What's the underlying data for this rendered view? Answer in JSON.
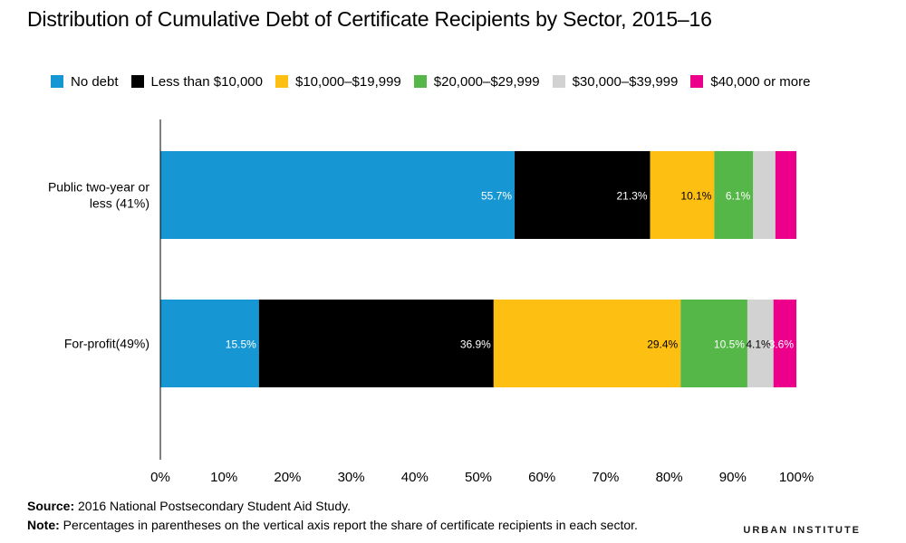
{
  "title": "Distribution of Cumulative Debt of Certificate Recipients by Sector, 2015–16",
  "colors": {
    "no_debt": "#1696d2",
    "lt_10k": "#000000",
    "10k_20k": "#fdbf11",
    "20k_30k": "#55b748",
    "30k_40k": "#d2d2d2",
    "40k_plus": "#ec008b"
  },
  "chart_data": {
    "type": "bar",
    "orientation": "horizontal",
    "stacked": true,
    "categories": [
      "Public two-year or less (41%)",
      "For-profit(49%)"
    ],
    "series": [
      {
        "name": "No debt",
        "color": "#1696d2",
        "values": [
          55.7,
          15.5
        ],
        "labels": [
          "55.7%",
          "15.5%"
        ],
        "label_color": "#ffffff"
      },
      {
        "name": "Less than $10,000",
        "color": "#000000",
        "values": [
          21.3,
          36.9
        ],
        "labels": [
          "21.3%",
          "36.9%"
        ],
        "label_color": "#ffffff"
      },
      {
        "name": "$10,000–$19,999",
        "color": "#fdbf11",
        "values": [
          10.1,
          29.4
        ],
        "labels": [
          "10.1%",
          "29.4%"
        ],
        "label_color": "#000000"
      },
      {
        "name": "$20,000–$29,999",
        "color": "#55b748",
        "values": [
          6.1,
          10.5
        ],
        "labels": [
          "6.1%",
          "10.5%"
        ],
        "label_color": "#ffffff"
      },
      {
        "name": "$30,000–$39,999",
        "color": "#d2d2d2",
        "values": [
          3.5,
          4.1
        ],
        "labels": [
          "",
          "4.1%"
        ],
        "label_color": "#000000"
      },
      {
        "name": "$40,000 or more",
        "color": "#ec008b",
        "values": [
          3.3,
          3.6
        ],
        "labels": [
          "",
          "3.6%"
        ],
        "label_color": "#ffffff"
      }
    ],
    "x_ticks": [
      "0%",
      "10%",
      "20%",
      "30%",
      "40%",
      "50%",
      "60%",
      "70%",
      "80%",
      "90%",
      "100%"
    ],
    "xlim": [
      0,
      100
    ],
    "xlabel": "",
    "ylabel": "",
    "grid": false,
    "legend": "top"
  },
  "footer": {
    "source_label": "Source:",
    "source_text": "2016 National Postsecondary Student Aid Study.",
    "note_label": "Note:",
    "note_text": "Percentages in parentheses on the vertical axis report the share of certificate recipients in each sector."
  },
  "brand": "URBAN INSTITUTE"
}
